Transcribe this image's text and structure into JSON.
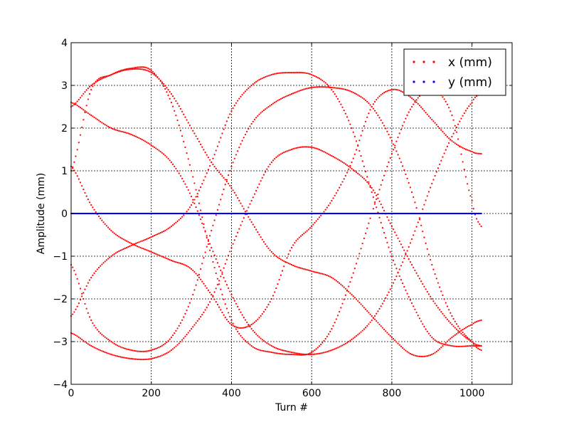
{
  "chart_data": {
    "type": "scatter",
    "xlabel": "Turn #",
    "ylabel": "Amplitude (mm)",
    "xlim": [
      0,
      1100
    ],
    "ylim": [
      -4,
      4
    ],
    "xticks": [
      0,
      200,
      400,
      600,
      800,
      1000
    ],
    "yticks": [
      -4,
      -3,
      -2,
      -1,
      0,
      1,
      2,
      3,
      4
    ],
    "xtick_labels": [
      "0",
      "200",
      "400",
      "600",
      "800",
      "1000"
    ],
    "ytick_labels": [
      "−4",
      "−3",
      "−2",
      "−1",
      "0",
      "1",
      "2",
      "3",
      "4"
    ],
    "grid": true,
    "legend_position": "top-right",
    "x_range": [
      0,
      1023
    ],
    "series": [
      {
        "name": "x (mm)",
        "color": "#ff0000",
        "marker": "dot",
        "x": [
          0,
          50,
          100,
          150,
          200,
          250,
          300,
          350,
          400,
          450,
          500,
          550,
          600,
          650,
          700,
          750,
          800,
          850,
          900,
          950,
          1000,
          1023
        ],
        "y": [
          1.0,
          2.9,
          3.25,
          3.4,
          3.35,
          2.6,
          1.0,
          -1.0,
          -2.5,
          -3.1,
          -3.25,
          -3.3,
          -3.25,
          -2.7,
          -1.5,
          0.0,
          1.4,
          2.5,
          2.9,
          2.3,
          0.3,
          -0.3
        ]
      },
      {
        "name": "y (mm)",
        "color": "#0000ff",
        "marker": "dot",
        "x": [
          0,
          100,
          200,
          300,
          400,
          500,
          600,
          700,
          800,
          900,
          1000,
          1023
        ],
        "y": [
          0,
          0,
          0,
          0,
          0,
          0,
          0,
          0,
          0,
          0,
          0,
          0
        ]
      }
    ],
    "x_series_extra_branches": [
      {
        "x": [
          0,
          50,
          100,
          150,
          200,
          250,
          300,
          350,
          400,
          450,
          500,
          550,
          600,
          650,
          700,
          750,
          800,
          850,
          900,
          950,
          1000,
          1023
        ],
        "y": [
          -2.4,
          -1.5,
          -1.0,
          -0.75,
          -0.55,
          -0.3,
          0.2,
          1.2,
          2.4,
          3.0,
          3.25,
          3.3,
          3.25,
          2.9,
          2.0,
          0.5,
          -1.0,
          -2.1,
          -2.9,
          -3.1,
          -3.1,
          -3.1
        ]
      },
      {
        "x": [
          0,
          50,
          100,
          150,
          200,
          250,
          300,
          350,
          400,
          450,
          500,
          550,
          600,
          650,
          700,
          750,
          800,
          850,
          900,
          950,
          1000,
          1023
        ],
        "y": [
          -1.2,
          -2.5,
          -3.0,
          -3.2,
          -3.2,
          -2.9,
          -2.0,
          -0.4,
          1.1,
          2.1,
          2.55,
          2.8,
          2.95,
          2.95,
          2.85,
          2.5,
          1.7,
          0.5,
          -1.2,
          -2.4,
          -3.0,
          -3.2
        ]
      },
      {
        "x": [
          0,
          50,
          100,
          150,
          200,
          250,
          300,
          350,
          400,
          450,
          500,
          550,
          600,
          650,
          700,
          750,
          800,
          850,
          900,
          950,
          1000,
          1023
        ],
        "y": [
          -2.8,
          -3.1,
          -3.3,
          -3.4,
          -3.4,
          -3.2,
          -2.7,
          -2.0,
          -0.8,
          0.3,
          1.2,
          1.5,
          1.55,
          1.35,
          1.05,
          0.6,
          -0.3,
          -1.2,
          -2.0,
          -2.6,
          -3.0,
          -3.1
        ]
      },
      {
        "x": [
          0,
          50,
          100,
          150,
          200,
          250,
          300,
          350,
          400,
          450,
          500,
          550,
          600,
          650,
          700,
          750,
          800,
          850,
          900,
          950,
          1000,
          1023
        ],
        "y": [
          2.6,
          2.3,
          2.0,
          1.85,
          1.6,
          1.2,
          0.4,
          -0.8,
          -1.9,
          -2.7,
          -3.1,
          -3.25,
          -3.3,
          -3.2,
          -2.95,
          -2.5,
          -1.7,
          -0.6,
          0.7,
          1.8,
          2.6,
          2.8
        ]
      },
      {
        "x": [
          0,
          50,
          100,
          150,
          200,
          250,
          300,
          350,
          400,
          450,
          500,
          550,
          600,
          650,
          700,
          750,
          800,
          850,
          900,
          950,
          1000,
          1023
        ],
        "y": [
          1.1,
          0.2,
          -0.4,
          -0.7,
          -0.9,
          -1.1,
          -1.3,
          -1.9,
          -2.6,
          -2.6,
          -2.0,
          -0.8,
          -0.3,
          0.3,
          1.2,
          2.5,
          2.9,
          2.7,
          2.2,
          1.7,
          1.45,
          1.4
        ]
      },
      {
        "x": [
          0,
          50,
          100,
          150,
          200,
          250,
          300,
          350,
          400,
          450,
          500,
          550,
          600,
          650,
          700,
          750,
          800,
          850,
          900,
          950,
          1000,
          1023
        ],
        "y": [
          2.5,
          3.0,
          3.25,
          3.38,
          3.3,
          2.8,
          2.0,
          1.2,
          0.6,
          -0.2,
          -0.9,
          -1.2,
          -1.35,
          -1.5,
          -1.9,
          -2.4,
          -2.9,
          -3.3,
          -3.3,
          -2.9,
          -2.6,
          -2.5
        ]
      }
    ]
  }
}
